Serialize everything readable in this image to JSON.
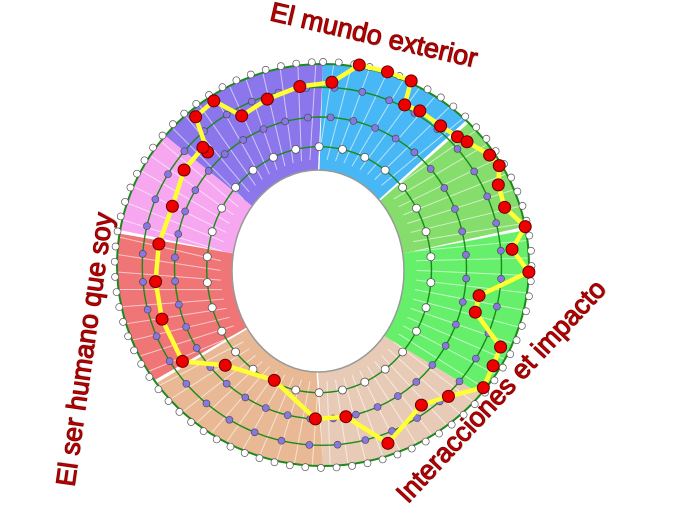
{
  "labels": {
    "top": "El mundo exterior",
    "left": "El ser humano que soy",
    "bottom_right": "Interacciones et impacto"
  },
  "colors": {
    "sectors": [
      "#8b76ec",
      "#47b8f5",
      "#85dd6c",
      "#65ef6a",
      "#e8cbb6",
      "#e8b994",
      "#f07576",
      "#f6a7f0"
    ],
    "ring_lines": "#1a8a1a",
    "path": "#ffff33",
    "path_nodes": "#ee0000",
    "ring_nodes": "#8877e0",
    "rim_nodes": "#ffffff",
    "label": "#c00000"
  }
}
